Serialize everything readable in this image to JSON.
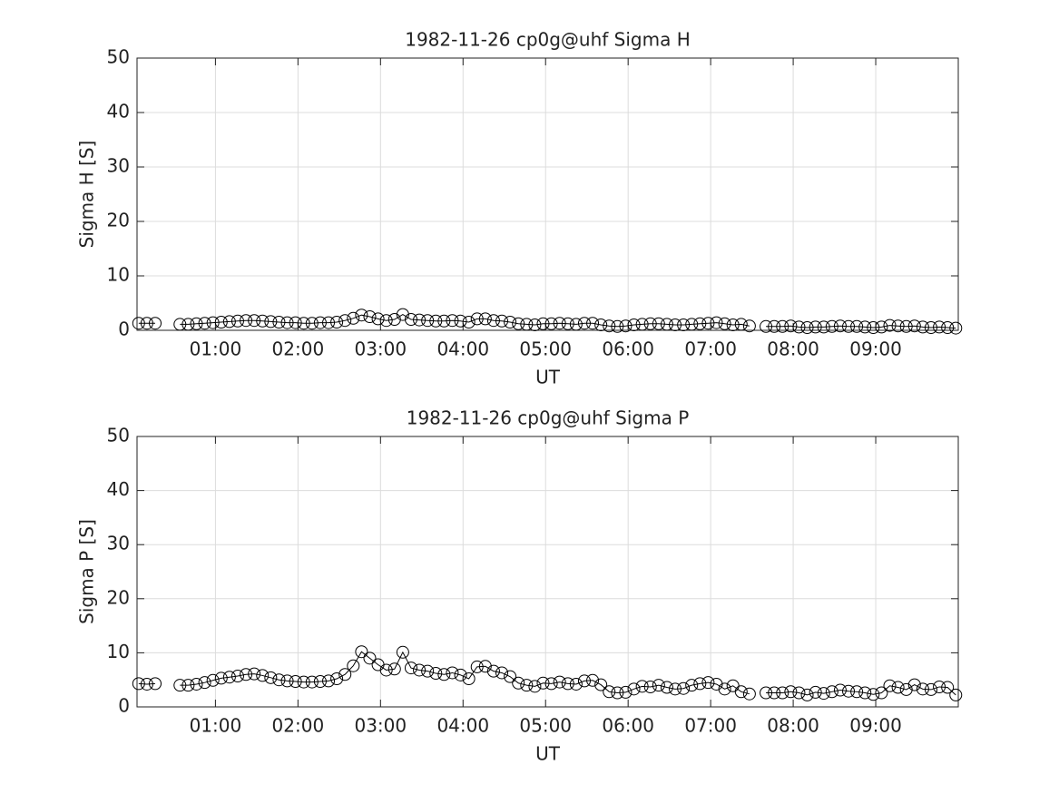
{
  "chart_data": [
    {
      "type": "line",
      "title": "1982-11-26  cp0g@uhf Sigma H",
      "xlabel": "UT",
      "ylabel": "Sigma H [S]",
      "color": "#000000",
      "marker": "circle",
      "grid": true,
      "x": [
        0.07,
        0.17,
        0.27,
        0.37,
        0.47,
        0.57,
        0.67,
        0.77,
        0.87,
        0.97,
        1.07,
        1.17,
        1.27,
        1.37,
        1.47,
        1.57,
        1.67,
        1.77,
        1.87,
        1.97,
        2.07,
        2.17,
        2.27,
        2.37,
        2.47,
        2.57,
        2.67,
        2.77,
        2.87,
        2.97,
        3.07,
        3.17,
        3.27,
        3.37,
        3.47,
        3.57,
        3.67,
        3.77,
        3.87,
        3.97,
        4.07,
        4.17,
        4.27,
        4.37,
        4.47,
        4.57,
        4.67,
        4.77,
        4.87,
        4.97,
        5.07,
        5.17,
        5.27,
        5.37,
        5.47,
        5.57,
        5.67,
        5.77,
        5.87,
        5.97,
        6.07,
        6.17,
        6.27,
        6.37,
        6.47,
        6.57,
        6.67,
        6.77,
        6.87,
        6.97,
        7.07,
        7.17,
        7.27,
        7.37,
        7.47,
        7.57,
        7.67,
        7.77,
        7.87,
        7.97,
        8.07,
        8.17,
        8.27,
        8.37,
        8.47,
        8.57,
        8.67,
        8.77,
        8.87,
        8.97,
        9.07,
        9.17,
        9.27,
        9.37,
        9.47,
        9.57,
        9.67,
        9.77,
        9.87,
        9.97
      ],
      "values": [
        1.3,
        1.3,
        1.3,
        null,
        null,
        1.1,
        1.1,
        1.2,
        1.3,
        1.4,
        1.5,
        1.6,
        1.7,
        1.8,
        1.8,
        1.7,
        1.6,
        1.5,
        1.4,
        1.4,
        1.3,
        1.3,
        1.4,
        1.4,
        1.5,
        1.8,
        2.2,
        2.8,
        2.5,
        2.1,
        1.8,
        2.0,
        2.9,
        2.0,
        1.9,
        1.8,
        1.7,
        1.7,
        1.8,
        1.7,
        1.5,
        2.1,
        2.1,
        1.8,
        1.7,
        1.5,
        1.2,
        1.1,
        1.0,
        1.2,
        1.2,
        1.3,
        1.2,
        1.1,
        1.3,
        1.3,
        1.0,
        0.8,
        0.7,
        0.8,
        1.0,
        1.1,
        1.2,
        1.2,
        1.1,
        1.0,
        1.0,
        1.1,
        1.2,
        1.3,
        1.4,
        1.2,
        1.0,
        1.1,
        0.8,
        null,
        0.7,
        0.7,
        0.7,
        0.8,
        0.6,
        0.5,
        0.6,
        0.6,
        0.7,
        0.8,
        0.7,
        0.7,
        0.6,
        0.5,
        0.6,
        0.9,
        0.8,
        0.7,
        0.8,
        0.6,
        0.5,
        0.6,
        0.5,
        0.4
      ],
      "xlim": [
        0.05,
        10.0
      ],
      "ylim": [
        0,
        50
      ],
      "xticks": [
        {
          "value": 1,
          "label": "01:00"
        },
        {
          "value": 2,
          "label": "02:00"
        },
        {
          "value": 3,
          "label": "03:00"
        },
        {
          "value": 4,
          "label": "04:00"
        },
        {
          "value": 5,
          "label": "05:00"
        },
        {
          "value": 6,
          "label": "06:00"
        },
        {
          "value": 7,
          "label": "07:00"
        },
        {
          "value": 8,
          "label": "08:00"
        },
        {
          "value": 9,
          "label": "09:00"
        }
      ],
      "yticks": [
        0,
        10,
        20,
        30,
        40,
        50
      ]
    },
    {
      "type": "line",
      "title": "1982-11-26  cp0g@uhf Sigma P",
      "xlabel": "UT",
      "ylabel": "Sigma P [S]",
      "color": "#000000",
      "marker": "circle",
      "grid": true,
      "x": [
        0.07,
        0.17,
        0.27,
        0.37,
        0.47,
        0.57,
        0.67,
        0.77,
        0.87,
        0.97,
        1.07,
        1.17,
        1.27,
        1.37,
        1.47,
        1.57,
        1.67,
        1.77,
        1.87,
        1.97,
        2.07,
        2.17,
        2.27,
        2.37,
        2.47,
        2.57,
        2.67,
        2.77,
        2.87,
        2.97,
        3.07,
        3.17,
        3.27,
        3.37,
        3.47,
        3.57,
        3.67,
        3.77,
        3.87,
        3.97,
        4.07,
        4.17,
        4.27,
        4.37,
        4.47,
        4.57,
        4.67,
        4.77,
        4.87,
        4.97,
        5.07,
        5.17,
        5.27,
        5.37,
        5.47,
        5.57,
        5.67,
        5.77,
        5.87,
        5.97,
        6.07,
        6.17,
        6.27,
        6.37,
        6.47,
        6.57,
        6.67,
        6.77,
        6.87,
        6.97,
        7.07,
        7.17,
        7.27,
        7.37,
        7.47,
        7.57,
        7.67,
        7.77,
        7.87,
        7.97,
        8.07,
        8.17,
        8.27,
        8.37,
        8.47,
        8.57,
        8.67,
        8.77,
        8.87,
        8.97,
        9.07,
        9.17,
        9.27,
        9.37,
        9.47,
        9.57,
        9.67,
        9.77,
        9.87,
        9.97
      ],
      "values": [
        4.3,
        4.2,
        4.3,
        null,
        null,
        4.0,
        4.0,
        4.2,
        4.5,
        4.9,
        5.3,
        5.5,
        5.7,
        6.0,
        6.1,
        5.8,
        5.4,
        5.0,
        4.8,
        4.7,
        4.6,
        4.6,
        4.7,
        4.8,
        5.2,
        6.0,
        7.6,
        10.2,
        9.0,
        7.8,
        6.8,
        7.0,
        10.1,
        7.2,
        6.8,
        6.6,
        6.2,
        6.0,
        6.3,
        5.9,
        5.2,
        7.4,
        7.5,
        6.6,
        6.3,
        5.6,
        4.4,
        4.0,
        3.8,
        4.4,
        4.3,
        4.6,
        4.3,
        4.2,
        4.8,
        4.9,
        4.1,
        2.8,
        2.6,
        2.7,
        3.3,
        3.8,
        3.7,
        4.0,
        3.6,
        3.3,
        3.4,
        4.0,
        4.3,
        4.5,
        4.2,
        3.3,
        3.9,
        2.8,
        2.4,
        null,
        2.6,
        2.6,
        2.6,
        2.8,
        2.6,
        2.2,
        2.7,
        2.5,
        2.8,
        3.1,
        2.9,
        2.8,
        2.6,
        2.3,
        2.6,
        3.9,
        3.6,
        3.2,
        4.1,
        3.3,
        3.2,
        3.7,
        3.6,
        2.2
      ],
      "xlim": [
        0.05,
        10.0
      ],
      "ylim": [
        0,
        50
      ],
      "xticks": [
        {
          "value": 1,
          "label": "01:00"
        },
        {
          "value": 2,
          "label": "02:00"
        },
        {
          "value": 3,
          "label": "03:00"
        },
        {
          "value": 4,
          "label": "04:00"
        },
        {
          "value": 5,
          "label": "05:00"
        },
        {
          "value": 6,
          "label": "06:00"
        },
        {
          "value": 7,
          "label": "07:00"
        },
        {
          "value": 8,
          "label": "08:00"
        },
        {
          "value": 9,
          "label": "09:00"
        }
      ],
      "yticks": [
        0,
        10,
        20,
        30,
        40,
        50
      ]
    }
  ]
}
